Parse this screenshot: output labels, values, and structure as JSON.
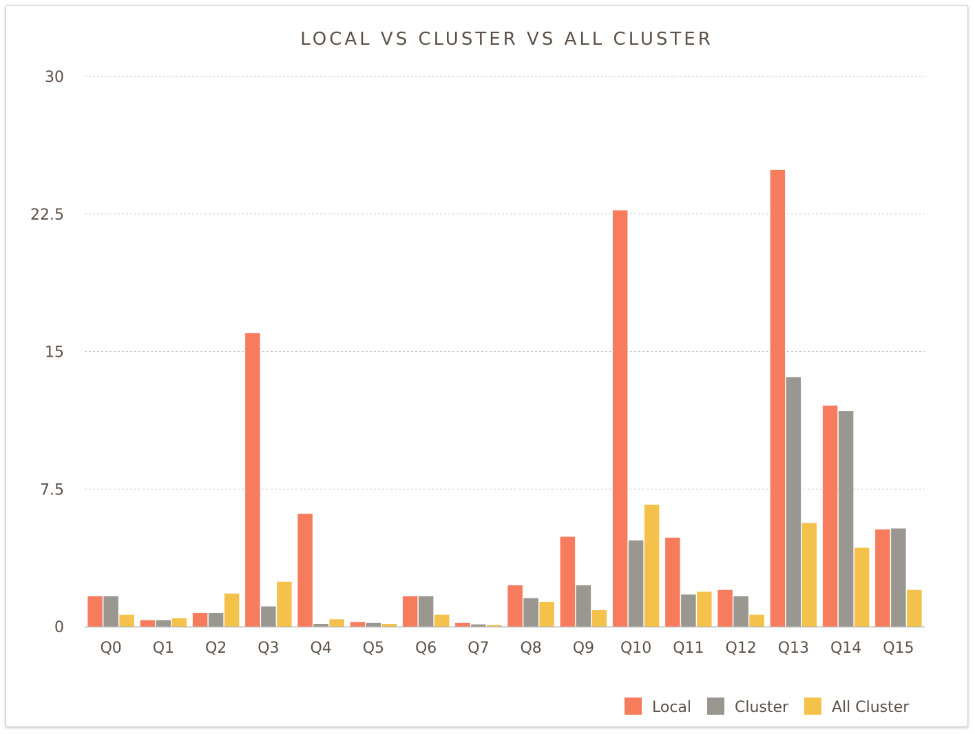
{
  "chart_data": {
    "type": "bar",
    "title": "LOCAL VS CLUSTER VS ALL CLUSTER",
    "xlabel": "",
    "ylabel": "",
    "ylim": [
      0,
      30
    ],
    "yticks": [
      "0",
      "7.5",
      "15",
      "22.5",
      "30"
    ],
    "ytick_values": [
      0,
      7.5,
      15,
      22.5,
      30
    ],
    "categories": [
      "Q0",
      "Q1",
      "Q2",
      "Q3",
      "Q4",
      "Q5",
      "Q6",
      "Q7",
      "Q8",
      "Q9",
      "Q10",
      "Q11",
      "Q12",
      "Q13",
      "Q14",
      "Q15"
    ],
    "series": [
      {
        "name": "Local",
        "color": "#f77c5d",
        "values": [
          1.65,
          0.35,
          0.75,
          16.0,
          6.15,
          0.25,
          1.65,
          0.2,
          2.25,
          4.9,
          22.7,
          4.85,
          2.0,
          24.9,
          12.05,
          5.3
        ]
      },
      {
        "name": "Cluster",
        "color": "#9a9690",
        "values": [
          1.65,
          0.35,
          0.75,
          1.1,
          0.15,
          0.2,
          1.65,
          0.12,
          1.55,
          2.25,
          4.7,
          1.75,
          1.65,
          13.6,
          11.75,
          5.35
        ]
      },
      {
        "name": "All Cluster",
        "color": "#f4c24b",
        "values": [
          0.65,
          0.45,
          1.8,
          2.45,
          0.4,
          0.15,
          0.65,
          0.08,
          1.35,
          0.9,
          6.65,
          1.9,
          0.65,
          5.65,
          4.3,
          2.0
        ]
      }
    ],
    "grid": true,
    "legend_position": "bottom-right"
  }
}
